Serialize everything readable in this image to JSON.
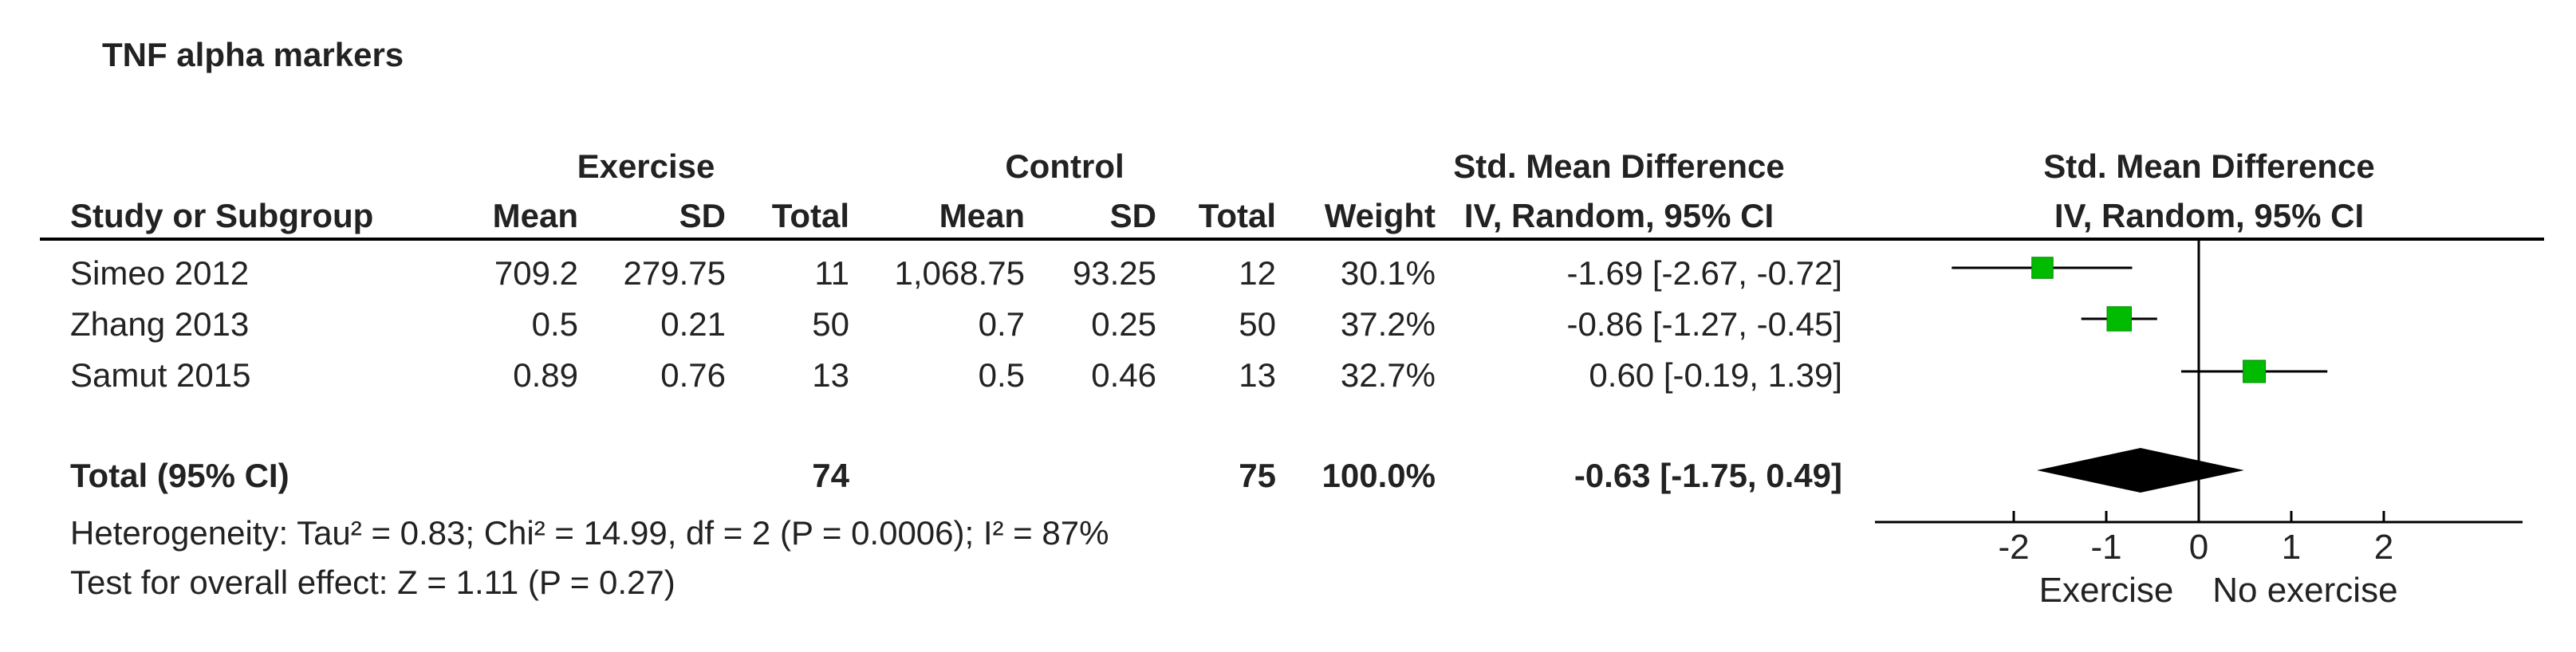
{
  "title": "TNF alpha markers",
  "headers": {
    "group_exercise": "Exercise",
    "group_control": "Control",
    "smd_group": "Std. Mean Difference",
    "smd_method": "IV, Random, 95% CI",
    "plot_group": "Std. Mean Difference",
    "plot_method": "IV, Random, 95% CI",
    "study": "Study or Subgroup",
    "mean": "Mean",
    "sd": "SD",
    "total": "Total",
    "weight": "Weight"
  },
  "studies": [
    {
      "name": "Simeo 2012",
      "ex_mean": "709.2",
      "ex_sd": "279.75",
      "ex_total": "11",
      "ct_mean": "1,068.75",
      "ct_sd": "93.25",
      "ct_total": "12",
      "weight": "30.1%",
      "ci_text": "-1.69 [-2.67, -0.72]"
    },
    {
      "name": "Zhang 2013",
      "ex_mean": "0.5",
      "ex_sd": "0.21",
      "ex_total": "50",
      "ct_mean": "0.7",
      "ct_sd": "0.25",
      "ct_total": "50",
      "weight": "37.2%",
      "ci_text": "-0.86 [-1.27, -0.45]"
    },
    {
      "name": "Samut 2015",
      "ex_mean": "0.89",
      "ex_sd": "0.76",
      "ex_total": "13",
      "ct_mean": "0.5",
      "ct_sd": "0.46",
      "ct_total": "13",
      "weight": "32.7%",
      "ci_text": "0.60 [-0.19, 1.39]"
    }
  ],
  "total": {
    "label": "Total (95% CI)",
    "ex_total": "74",
    "ct_total": "75",
    "weight": "100.0%",
    "ci_text": "-0.63 [-1.75, 0.49]"
  },
  "heterogeneity": "Heterogeneity: Tau² = 0.83; Chi² = 14.99, df = 2 (P = 0.0006); I² = 87%",
  "overall_effect": "Test for overall effect: Z = 1.11 (P = 0.27)",
  "chart_data": {
    "type": "forest",
    "x_ticks": [
      -2,
      -1,
      0,
      1,
      2
    ],
    "x_tick_labels": [
      "-2",
      "-1",
      "0",
      "1",
      "2"
    ],
    "xlim": [
      -3.5,
      3.5
    ],
    "left_label": "Exercise",
    "right_label": "No exercise",
    "points": [
      {
        "name": "Simeo 2012",
        "est": -1.69,
        "lo": -2.67,
        "hi": -0.72,
        "weight": 30.1
      },
      {
        "name": "Zhang 2013",
        "est": -0.86,
        "lo": -1.27,
        "hi": -0.45,
        "weight": 37.2
      },
      {
        "name": "Samut 2015",
        "est": 0.6,
        "lo": -0.19,
        "hi": 1.39,
        "weight": 32.7
      }
    ],
    "pooled": {
      "est": -0.63,
      "lo": -1.75,
      "hi": 0.49
    },
    "marker_color": "#00bb00"
  }
}
